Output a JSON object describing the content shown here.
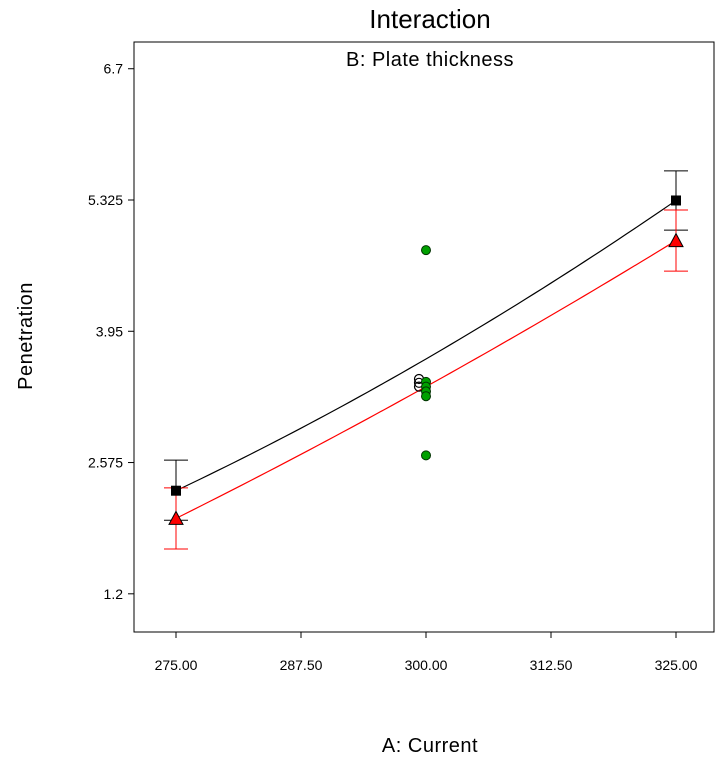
{
  "chart_data": {
    "type": "line",
    "title": "Interaction",
    "subtitle": "B: Plate thickness",
    "xlabel": "A: Current",
    "ylabel": "Penetration",
    "xlim": [
      270.8,
      328.8
    ],
    "ylim": [
      0.8,
      6.98
    ],
    "x_ticks": [
      275,
      287.5,
      300,
      312.5,
      325
    ],
    "x_tick_labels": [
      "275.00",
      "287.50",
      "300.00",
      "312.50",
      "325.00"
    ],
    "y_ticks": [
      1.2,
      2.575,
      3.95,
      5.325,
      6.7
    ],
    "y_tick_labels": [
      "1.2",
      "2.575",
      "3.95",
      "5.325",
      "6.7"
    ],
    "grid": false,
    "series": [
      {
        "color": "#000000",
        "marker": "square",
        "x": [
          275,
          300,
          325
        ],
        "y": [
          2.28,
          3.66,
          5.32
        ],
        "error_bars": [
          {
            "x": 275,
            "low": 1.97,
            "high": 2.6
          },
          {
            "x": 325,
            "low": 5.01,
            "high": 5.63
          }
        ]
      },
      {
        "color": "#ff0000",
        "marker": "triangle",
        "x": [
          275,
          300,
          325
        ],
        "y": [
          1.99,
          3.37,
          4.9
        ],
        "error_bars": [
          {
            "x": 275,
            "low": 1.67,
            "high": 2.31
          },
          {
            "x": 325,
            "low": 4.58,
            "high": 5.22
          }
        ]
      }
    ],
    "design_points_black": [
      {
        "x": 299.3,
        "y": 3.45
      },
      {
        "x": 299.3,
        "y": 3.41
      },
      {
        "x": 299.3,
        "y": 3.37
      }
    ],
    "design_points_green": [
      {
        "x": 300,
        "y": 4.8
      },
      {
        "x": 300,
        "y": 3.42
      },
      {
        "x": 300,
        "y": 3.37
      },
      {
        "x": 300,
        "y": 3.32
      },
      {
        "x": 300,
        "y": 3.27
      },
      {
        "x": 300,
        "y": 2.65
      }
    ],
    "point_colors": {
      "black": "#000000",
      "green": "#00a000"
    }
  }
}
